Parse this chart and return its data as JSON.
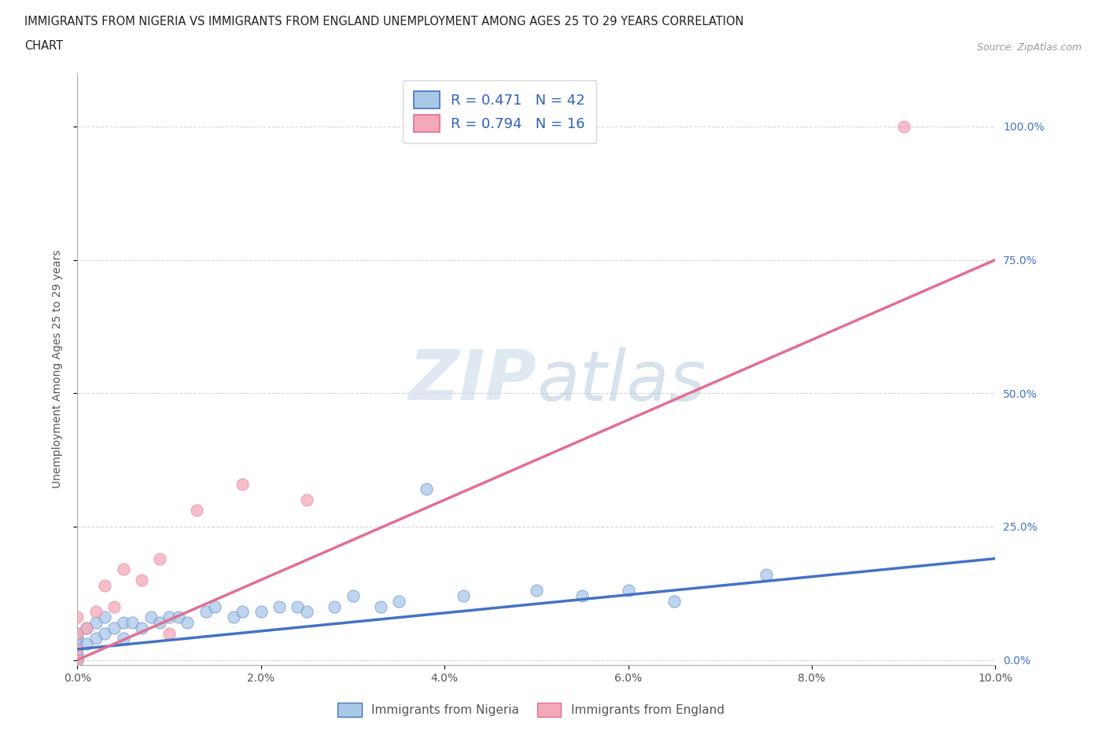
{
  "title_line1": "IMMIGRANTS FROM NIGERIA VS IMMIGRANTS FROM ENGLAND UNEMPLOYMENT AMONG AGES 25 TO 29 YEARS CORRELATION",
  "title_line2": "CHART",
  "source": "Source: ZipAtlas.com",
  "ylabel": "Unemployment Among Ages 25 to 29 years",
  "xlim": [
    0.0,
    0.1
  ],
  "ylim": [
    -0.01,
    1.1
  ],
  "yticks": [
    0.0,
    0.25,
    0.5,
    0.75,
    1.0
  ],
  "ytick_labels": [
    "0.0%",
    "25.0%",
    "50.0%",
    "75.0%",
    "100.0%"
  ],
  "xticks": [
    0.0,
    0.02,
    0.04,
    0.06,
    0.08,
    0.1
  ],
  "xtick_labels": [
    "0.0%",
    "2.0%",
    "4.0%",
    "6.0%",
    "8.0%",
    "10.0%"
  ],
  "nigeria_color": "#a8c8e8",
  "england_color": "#f4a8b8",
  "nigeria_line_color": "#4472c4",
  "england_line_color": "#e07090",
  "legend_nigeria_label": "Immigrants from Nigeria",
  "legend_england_label": "Immigrants from England",
  "R_nigeria": 0.471,
  "N_nigeria": 42,
  "R_england": 0.794,
  "N_england": 16,
  "nigeria_scatter_x": [
    0.0,
    0.0,
    0.0,
    0.0,
    0.0,
    0.0,
    0.0,
    0.001,
    0.001,
    0.002,
    0.002,
    0.003,
    0.003,
    0.004,
    0.005,
    0.005,
    0.006,
    0.007,
    0.008,
    0.009,
    0.01,
    0.011,
    0.012,
    0.014,
    0.015,
    0.017,
    0.018,
    0.02,
    0.022,
    0.024,
    0.025,
    0.028,
    0.03,
    0.033,
    0.035,
    0.038,
    0.042,
    0.05,
    0.055,
    0.06,
    0.065,
    0.075
  ],
  "nigeria_scatter_y": [
    0.0,
    0.005,
    0.01,
    0.02,
    0.03,
    0.04,
    0.05,
    0.03,
    0.06,
    0.04,
    0.07,
    0.05,
    0.08,
    0.06,
    0.07,
    0.04,
    0.07,
    0.06,
    0.08,
    0.07,
    0.08,
    0.08,
    0.07,
    0.09,
    0.1,
    0.08,
    0.09,
    0.09,
    0.1,
    0.1,
    0.09,
    0.1,
    0.12,
    0.1,
    0.11,
    0.32,
    0.12,
    0.13,
    0.12,
    0.13,
    0.11,
    0.16
  ],
  "england_scatter_x": [
    0.0,
    0.0,
    0.0,
    0.0,
    0.001,
    0.002,
    0.003,
    0.004,
    0.005,
    0.007,
    0.009,
    0.01,
    0.013,
    0.018,
    0.025,
    0.09
  ],
  "england_scatter_y": [
    0.0,
    0.02,
    0.05,
    0.08,
    0.06,
    0.09,
    0.14,
    0.1,
    0.17,
    0.15,
    0.19,
    0.05,
    0.28,
    0.33,
    0.3,
    1.0
  ],
  "nigeria_trendline_x": [
    0.0,
    0.1
  ],
  "nigeria_trendline_y": [
    0.02,
    0.19
  ],
  "england_trendline_x": [
    0.0,
    0.1
  ],
  "england_trendline_y": [
    0.0,
    0.75
  ]
}
